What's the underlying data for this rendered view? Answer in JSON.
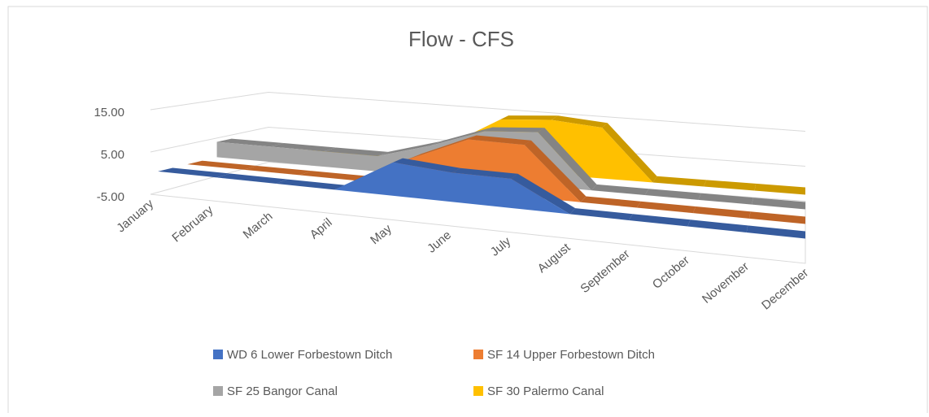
{
  "chart_data": {
    "type": "area3d",
    "title": "Flow - CFS",
    "categories": [
      "January",
      "February",
      "March",
      "April",
      "May",
      "June",
      "July",
      "August",
      "September",
      "October",
      "November",
      "December"
    ],
    "series": [
      {
        "name": "WD 6 Lower Forbestown Ditch",
        "color": "#4472c4",
        "values": [
          0,
          0,
          0,
          0,
          8,
          7,
          7,
          0,
          0,
          0,
          0,
          0
        ]
      },
      {
        "name": "SF 14 Upper Forbestown Ditch",
        "color": "#ed7d31",
        "values": [
          0,
          0,
          0,
          0,
          7,
          13,
          13,
          0,
          0,
          0,
          0,
          0
        ]
      },
      {
        "name": "SF 25 Bangor Canal",
        "color": "#a5a5a5",
        "values": [
          4,
          4,
          4,
          4,
          8,
          13,
          14,
          0,
          0,
          0,
          0,
          0
        ]
      },
      {
        "name": "SF 30 Palermo Canal",
        "color": "#ffc000",
        "values": [
          0,
          0,
          0,
          0,
          6,
          14,
          15,
          14,
          0,
          0,
          0,
          0
        ]
      }
    ],
    "ylim": [
      -5,
      15
    ],
    "yticks": [
      {
        "value": -5,
        "label": "-5.00"
      },
      {
        "value": 5,
        "label": "5.00"
      },
      {
        "value": 15,
        "label": "15.00"
      }
    ],
    "grid": true
  }
}
